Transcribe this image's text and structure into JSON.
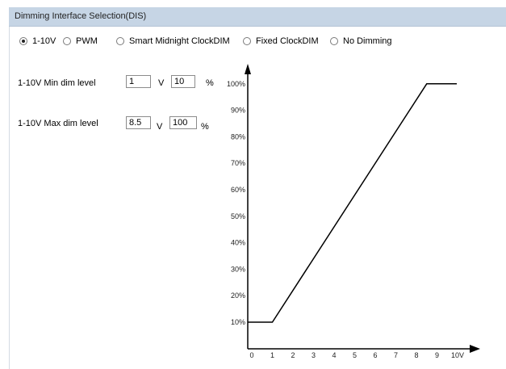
{
  "header": {
    "title": "Dimming Interface Selection(DIS)"
  },
  "interface_options": [
    {
      "label": "1-10V",
      "checked": true
    },
    {
      "label": "PWM",
      "checked": false
    },
    {
      "label": "Smart Midnight ClockDIM",
      "checked": false
    },
    {
      "label": "Fixed ClockDIM",
      "checked": false
    },
    {
      "label": "No Dimming",
      "checked": false
    }
  ],
  "min_dim": {
    "label": "1-10V Min dim level",
    "volts": "1",
    "volt_unit": "V",
    "percent": "10",
    "percent_unit": "%"
  },
  "max_dim": {
    "label": "1-10V Max dim level",
    "volts": "8.5",
    "volt_unit": "V",
    "percent": "100",
    "percent_unit": "%"
  },
  "chart_data": {
    "type": "line",
    "x_ticks": [
      "0",
      "1",
      "2",
      "3",
      "4",
      "5",
      "6",
      "7",
      "8",
      "9",
      "10V"
    ],
    "y_ticks": [
      "10%",
      "20%",
      "30%",
      "40%",
      "50%",
      "60%",
      "70%",
      "80%",
      "90%",
      "100%"
    ],
    "series": [
      {
        "x": [
          0,
          1,
          8.5,
          10
        ],
        "y": [
          10,
          10,
          100,
          100
        ]
      }
    ],
    "xlim": [
      0,
      10
    ],
    "ylim": [
      0,
      100
    ],
    "color": "#000000"
  }
}
